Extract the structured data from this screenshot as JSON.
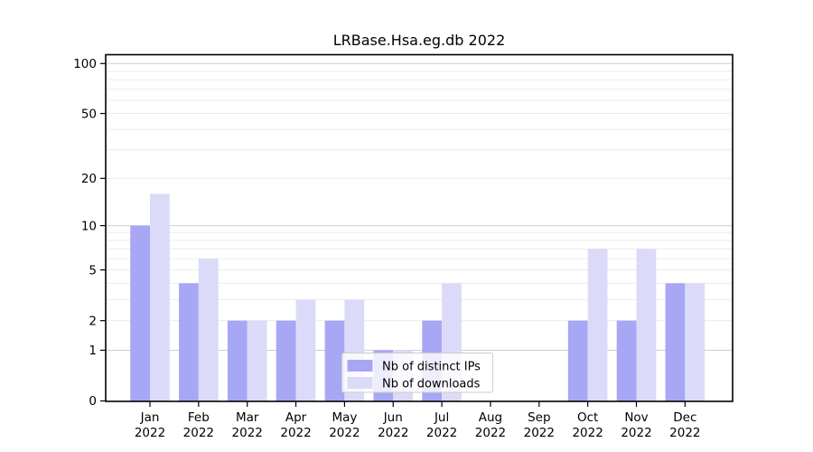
{
  "chart_data": {
    "type": "bar",
    "title": "LRBase.Hsa.eg.db 2022",
    "categories": [
      "Jan",
      "Feb",
      "Mar",
      "Apr",
      "May",
      "Jun",
      "Jul",
      "Aug",
      "Sep",
      "Oct",
      "Nov",
      "Dec"
    ],
    "x_tick_year": "2022",
    "series": [
      {
        "name": "Nb of distinct IPs",
        "color": "#a7a7f5",
        "values": [
          10,
          4,
          2,
          2,
          2,
          1,
          2,
          0,
          0,
          2,
          2,
          4
        ]
      },
      {
        "name": "Nb of downloads",
        "color": "#dbdbf9",
        "values": [
          16,
          6,
          2,
          3,
          3,
          1,
          4,
          0,
          0,
          7,
          7,
          4
        ]
      }
    ],
    "y_scale": "log10(value+1), zero pinned to baseline",
    "y_ticks": [
      0,
      1,
      2,
      5,
      10,
      20,
      50,
      100
    ],
    "y_gridlines": [
      1,
      2,
      3,
      4,
      5,
      6,
      7,
      8,
      9,
      10,
      20,
      30,
      40,
      50,
      60,
      70,
      80,
      90,
      100
    ],
    "y_major_gridlines": [
      1,
      10,
      100
    ],
    "ylim": [
      0,
      113
    ],
    "grid": true,
    "legend": {
      "position": "lower center"
    }
  },
  "colors": {
    "bar_distinct_ips": "#a7a7f5",
    "bar_downloads": "#dbdbf9",
    "grid_minor": "#ececec",
    "grid_major": "#cfcfcf",
    "axis": "#000000",
    "legend_border": "#cccccc",
    "background": "#ffffff"
  }
}
